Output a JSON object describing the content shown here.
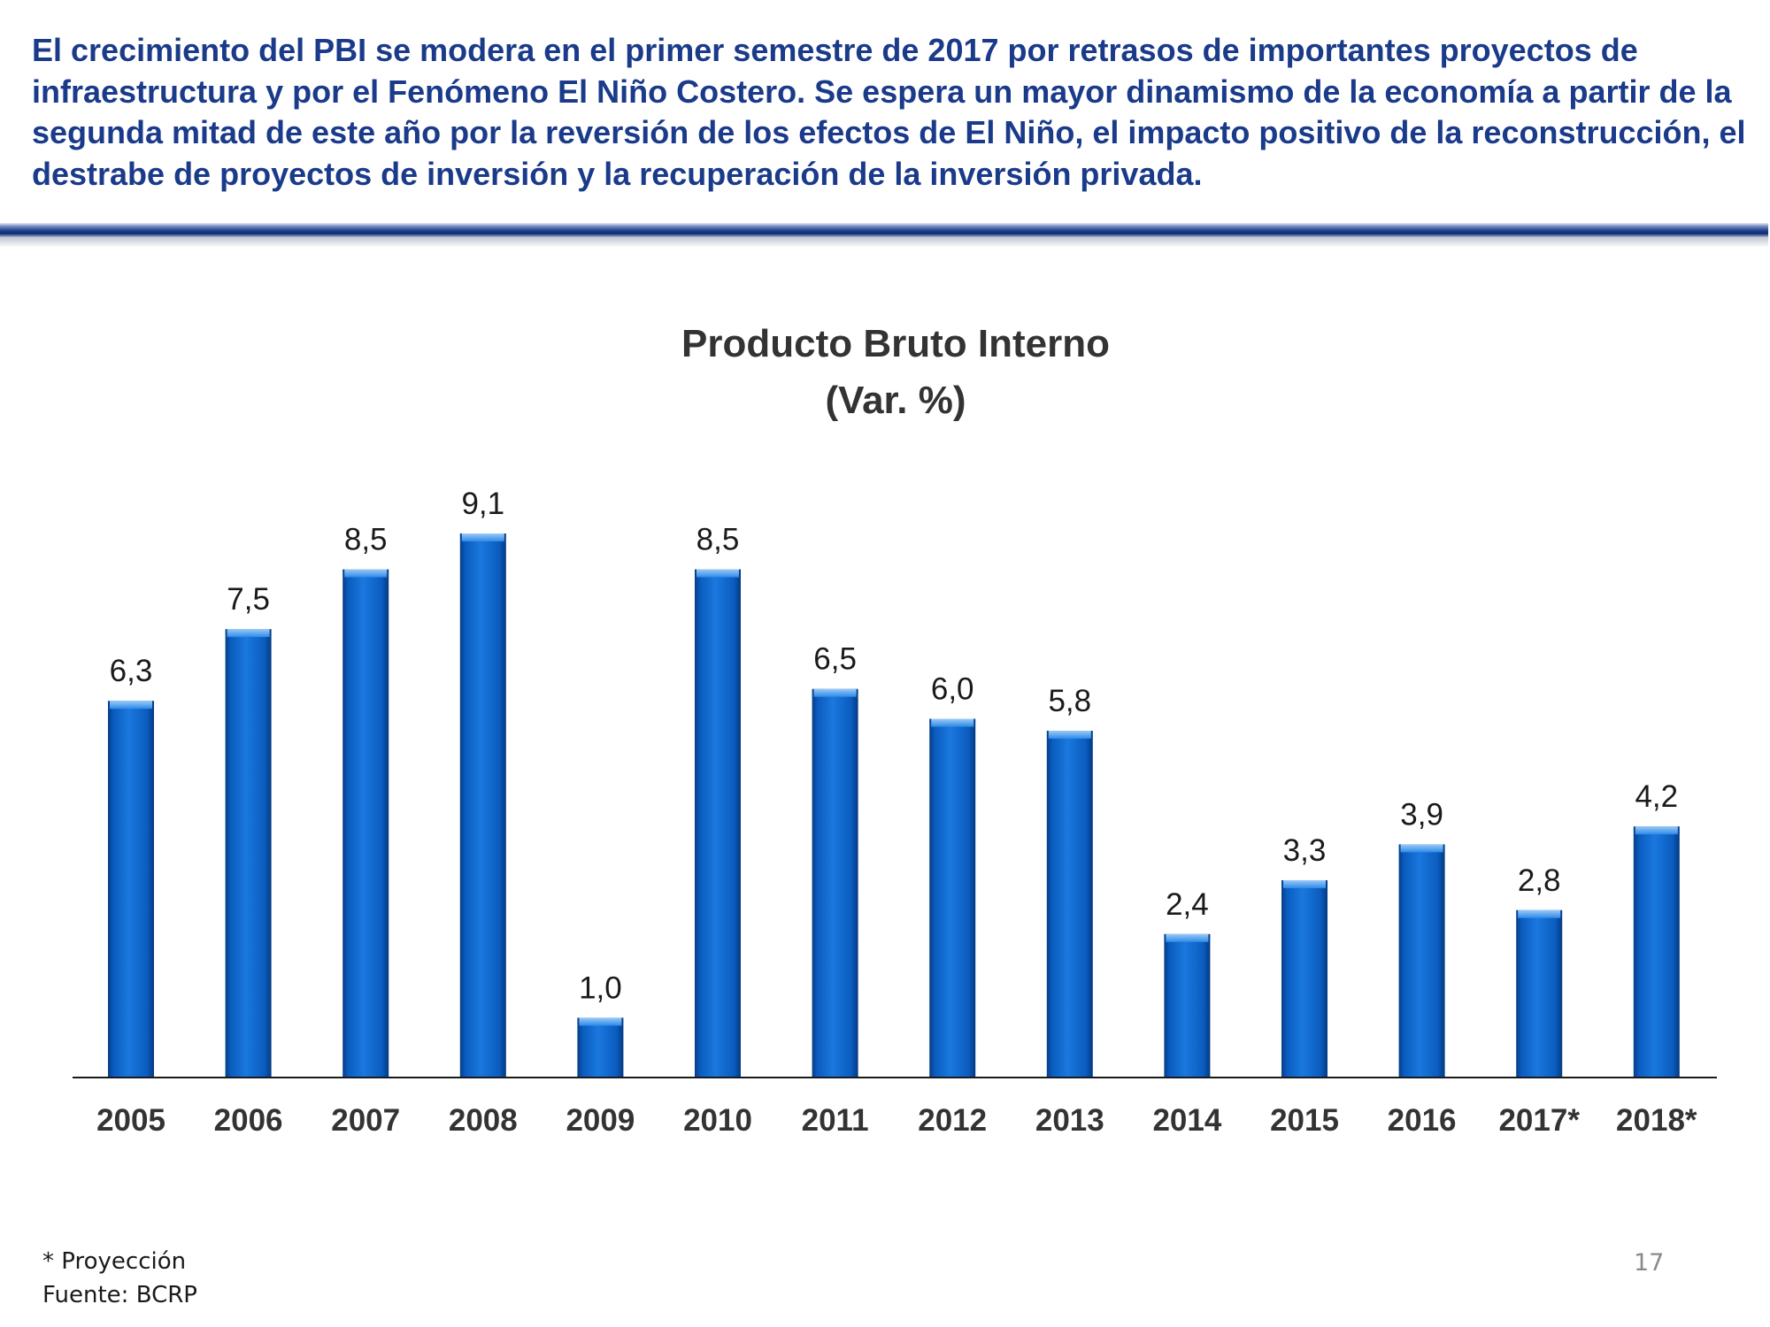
{
  "header": {
    "text": "El crecimiento del PBI se modera en el primer semestre de 2017 por retrasos de importantes proyectos de infraestructura y por el Fenómeno El Niño Costero. Se espera un mayor dinamismo de la economía a partir de la segunda mitad de este año por la reversión de los efectos de El Niño, el impacto positivo de la reconstrucción, el destrabe de proyectos de inversión y la recuperación de la inversión privada."
  },
  "chart_data": {
    "type": "bar",
    "title": "Producto Bruto Interno",
    "subtitle": "(Var. %)",
    "categories": [
      "2005",
      "2006",
      "2007",
      "2008",
      "2009",
      "2010",
      "2011",
      "2012",
      "2013",
      "2014",
      "2015",
      "2016",
      "2017*",
      "2018*"
    ],
    "values": [
      6.3,
      7.5,
      8.5,
      9.1,
      1.0,
      8.5,
      6.5,
      6.0,
      5.8,
      2.4,
      3.3,
      3.9,
      2.8,
      4.2
    ],
    "value_labels": [
      "6,3",
      "7,5",
      "8,5",
      "9,1",
      "1,0",
      "8,5",
      "6,5",
      "6,0",
      "5,8",
      "2,4",
      "3,3",
      "3,9",
      "2,8",
      "4,2"
    ],
    "xlabel": "",
    "ylabel": "",
    "ylim": [
      0,
      9.1
    ],
    "grid": false,
    "legend": false,
    "bar_color": "#0b62c6"
  },
  "footnote": {
    "projection": "* Proyección",
    "source": "Fuente: BCRP"
  },
  "page_number": "17"
}
